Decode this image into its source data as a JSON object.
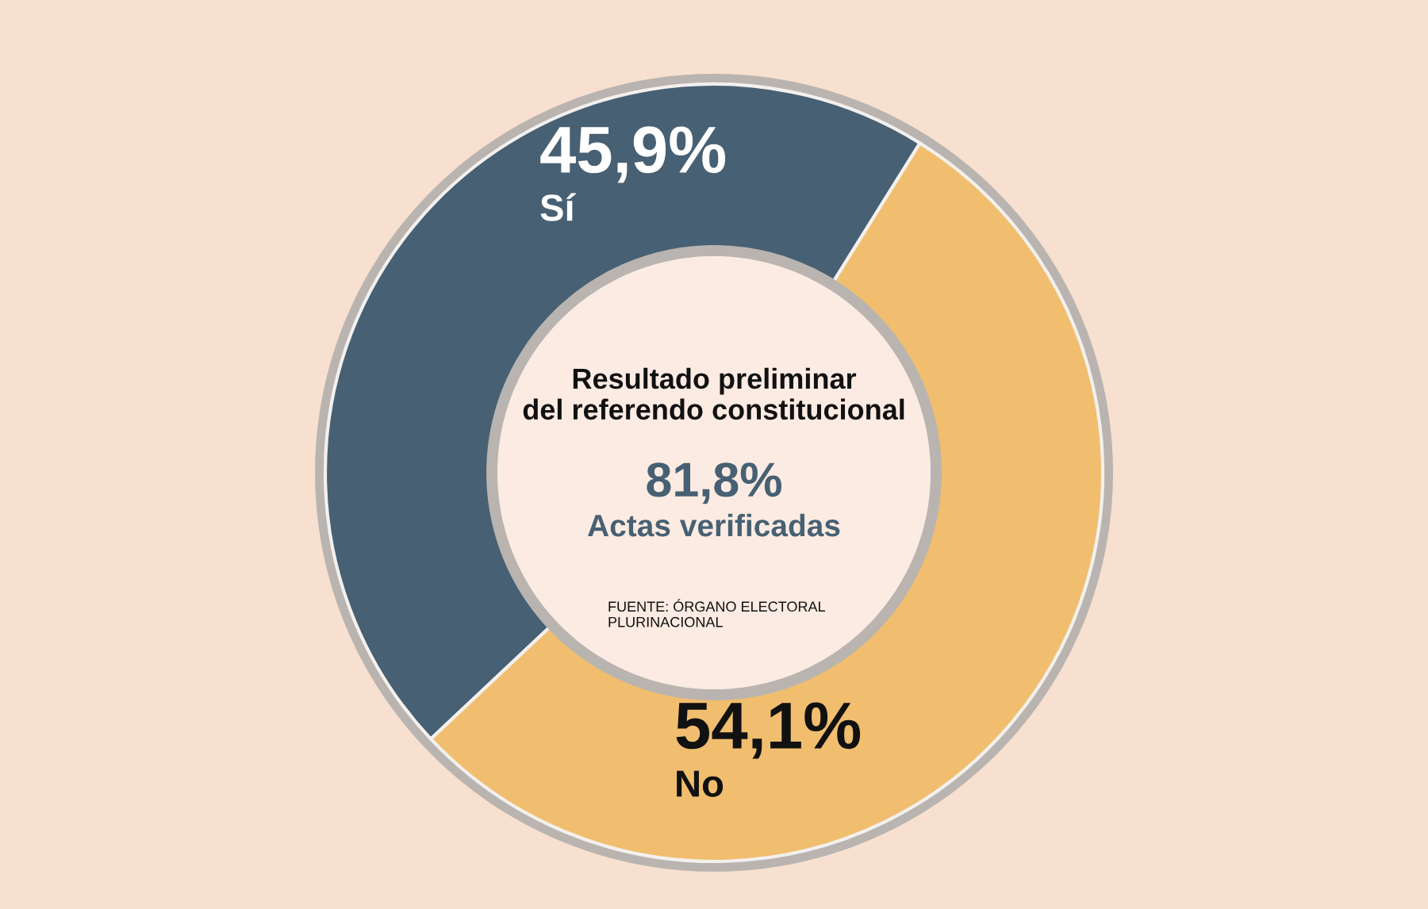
{
  "chart_data": {
    "type": "donut",
    "title": "Resultado preliminar\ndel referendo constitucional",
    "categories": [
      "Sí",
      "No"
    ],
    "values": [
      45.9,
      54.1
    ],
    "colors": [
      "#476073",
      "#f0be6e"
    ],
    "value_labels": [
      "45,9%",
      "54,1%"
    ],
    "annotations": [
      "81,8%",
      "Actas verificadas",
      "FUENTE: ÓRGANO ELECTORAL\nPLURINACIONAL"
    ]
  }
}
